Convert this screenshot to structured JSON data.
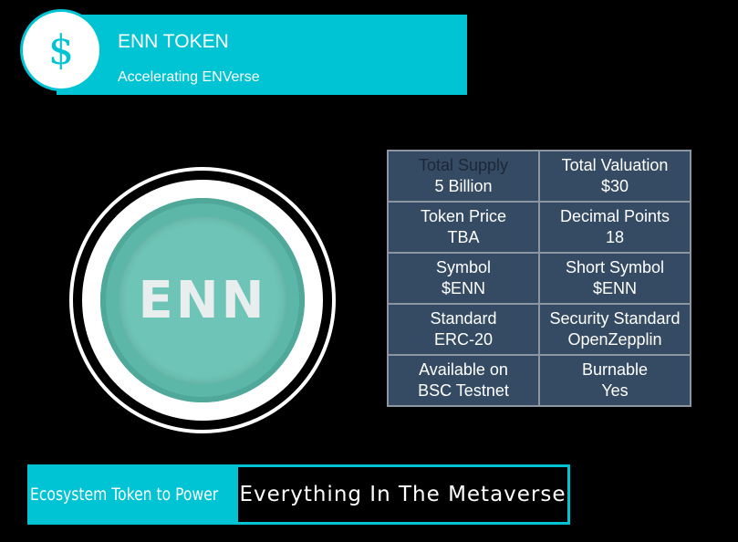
{
  "header": {
    "icon": "dollar-sign-icon",
    "icon_glyph": "$",
    "title": "ENN TOKEN",
    "subtitle": "Accelerating ENVerse"
  },
  "coin": {
    "label": "ENN"
  },
  "info_table": {
    "rows": [
      [
        {
          "label": "Total Supply",
          "value": "5 Billion"
        },
        {
          "label": "Total Valuation",
          "value": "$30"
        }
      ],
      [
        {
          "label": "Token Price",
          "value": "TBA"
        },
        {
          "label": "Decimal Points",
          "value": "18"
        }
      ],
      [
        {
          "label": "Symbol",
          "value": "$ENN"
        },
        {
          "label": "Short Symbol",
          "value": "$ENN"
        }
      ],
      [
        {
          "label": "Standard",
          "value": "ERC-20"
        },
        {
          "label": "Security Standard",
          "value": "OpenZepplin"
        }
      ],
      [
        {
          "label": "Available on",
          "value": "BSC Testnet"
        },
        {
          "label": "Burnable",
          "value": "Yes"
        }
      ]
    ]
  },
  "footer": {
    "left": "Ecosystem Token to Power",
    "right": "Everything In The Metaverse"
  },
  "colors": {
    "accent": "#00c4d3",
    "table_bg": "#344b63",
    "coin": "#5cb7a8",
    "background": "#000000"
  }
}
